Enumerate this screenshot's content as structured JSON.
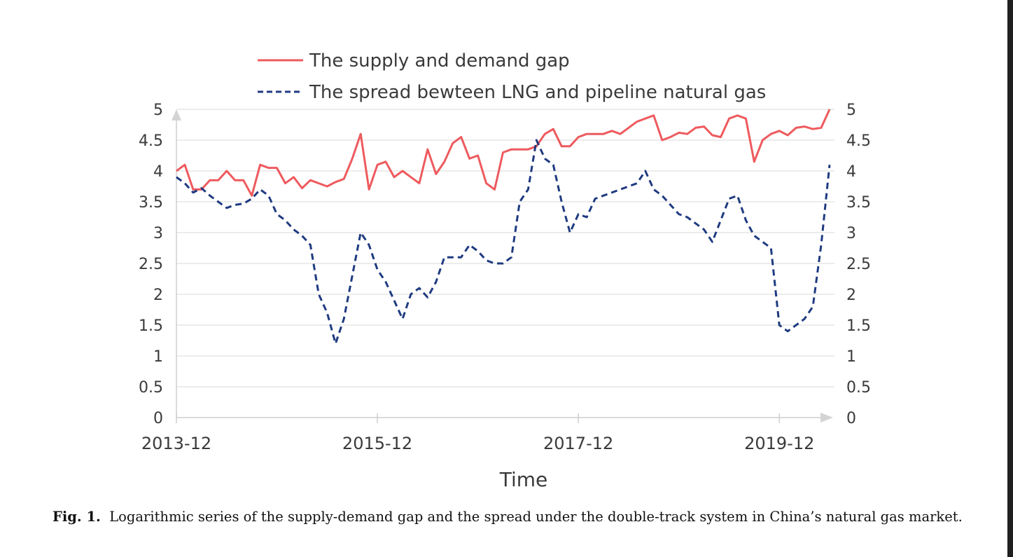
{
  "caption": {
    "label": "Fig. 1.",
    "text": "Logarithmic series of the supply-demand gap and the spread under the double-track system in China’s natural gas market."
  },
  "chart_data": {
    "type": "line",
    "xlabel": "Time",
    "x_tick_labels": [
      "2013-12",
      "2015-12",
      "2017-12",
      "2019-12"
    ],
    "ylim": [
      0,
      5
    ],
    "y_ticks": [
      "0",
      "0.5",
      "1",
      "1.5",
      "2",
      "2.5",
      "3",
      "3.5",
      "4",
      "4.5",
      "5"
    ],
    "grid": true,
    "legend_position": "top",
    "series": [
      {
        "name": "The supply and demand gap",
        "color": "#ee5a5e",
        "style": "solid",
        "values": [
          4.0,
          4.1,
          3.7,
          3.7,
          3.85,
          3.85,
          4.0,
          3.85,
          3.85,
          3.6,
          4.1,
          4.05,
          4.05,
          3.8,
          3.9,
          3.72,
          3.85,
          3.8,
          3.75,
          3.82,
          3.87,
          4.2,
          4.6,
          3.7,
          4.1,
          4.15,
          3.9,
          4.0,
          3.9,
          3.8,
          4.35,
          3.95,
          4.15,
          4.45,
          4.55,
          4.2,
          4.25,
          3.8,
          3.7,
          4.3,
          4.35,
          4.35,
          4.35,
          4.4,
          4.6,
          4.68,
          4.4,
          4.4,
          4.55,
          4.6,
          4.6,
          4.6,
          4.65,
          4.6,
          4.7,
          4.8,
          4.85,
          4.9,
          4.5,
          4.55,
          4.62,
          4.6,
          4.7,
          4.72,
          4.58,
          4.55,
          4.85,
          4.9,
          4.85,
          4.15,
          4.5,
          4.6,
          4.65,
          4.58,
          4.7,
          4.72,
          4.68,
          4.7,
          5.0
        ]
      },
      {
        "name": "The spread bewteen LNG and pipeline natural gas",
        "color": "#1f3b80",
        "style": "dashed",
        "values": [
          3.9,
          3.8,
          3.65,
          3.72,
          3.6,
          3.5,
          3.4,
          3.45,
          3.47,
          3.55,
          3.7,
          3.6,
          3.3,
          3.2,
          3.05,
          2.95,
          2.8,
          2.0,
          1.7,
          1.2,
          1.6,
          2.3,
          3.0,
          2.8,
          2.4,
          2.2,
          1.9,
          1.6,
          2.0,
          2.1,
          1.95,
          2.2,
          2.6,
          2.6,
          2.6,
          2.8,
          2.7,
          2.55,
          2.5,
          2.5,
          2.6,
          3.5,
          3.7,
          4.5,
          4.2,
          4.1,
          3.5,
          3.0,
          3.3,
          3.25,
          3.55,
          3.6,
          3.65,
          3.7,
          3.75,
          3.8,
          4.0,
          3.7,
          3.6,
          3.45,
          3.3,
          3.25,
          3.15,
          3.05,
          2.85,
          3.2,
          3.55,
          3.6,
          3.2,
          2.95,
          2.85,
          2.75,
          1.5,
          1.4,
          1.5,
          1.6,
          1.8,
          2.8,
          4.1
        ]
      }
    ]
  }
}
